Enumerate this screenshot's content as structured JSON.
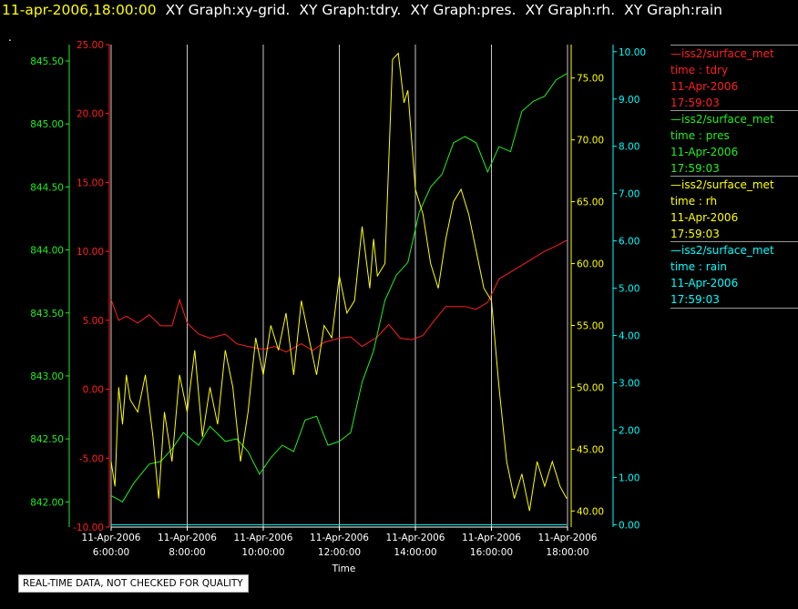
{
  "header": {
    "timestamp": "11-apr-2006,18:00:00",
    "graphs": [
      "XY Graph:xy-grid.",
      "XY Graph:tdry.",
      "XY Graph:pres.",
      "XY Graph:rh.",
      "XY Graph:rain"
    ]
  },
  "marker_text": ".",
  "disclaimer": "REAL-TIME DATA, NOT CHECKED FOR QUALITY",
  "legend": [
    {
      "name": "—iss2/surface_met",
      "field": "time : tdry",
      "date": "11-Apr-2006",
      "time": "17:59:03",
      "color": "#ff2020"
    },
    {
      "name": "—iss2/surface_met",
      "field": "time : pres",
      "date": "11-Apr-2006",
      "time": "17:59:03",
      "color": "#22ee22"
    },
    {
      "name": "—iss2/surface_met",
      "field": "time : rh",
      "date": "11-Apr-2006",
      "time": "17:59:03",
      "color": "#ffff00"
    },
    {
      "name": "—iss2/surface_met",
      "field": "time : rain",
      "date": "11-Apr-2006",
      "time": "17:59:03",
      "color": "#00ffff"
    }
  ],
  "chart_data": {
    "type": "line",
    "xlabel": "Time",
    "x_ticks": [
      {
        "date": "11-Apr-2006",
        "time": "6:00:00"
      },
      {
        "date": "11-Apr-2006",
        "time": "8:00:00"
      },
      {
        "date": "11-Apr-2006",
        "time": "10:00:00"
      },
      {
        "date": "11-Apr-2006",
        "time": "12:00:00"
      },
      {
        "date": "11-Apr-2006",
        "time": "14:00:00"
      },
      {
        "date": "11-Apr-2006",
        "time": "16:00:00"
      },
      {
        "date": "11-Apr-2006",
        "time": "18:00:00"
      }
    ],
    "x_range_hours": [
      6,
      18
    ],
    "grid": "vertical",
    "axes": [
      {
        "id": "pres",
        "color": "#22ee22",
        "range": [
          841.8,
          845.63
        ],
        "ticks": [
          "842.00",
          "842.50",
          "843.00",
          "843.50",
          "844.00",
          "844.50",
          "845.00",
          "845.50"
        ],
        "side": "left"
      },
      {
        "id": "tdry",
        "color": "#ff2020",
        "range": [
          -10,
          25
        ],
        "ticks": [
          "-10.00",
          "-5.00",
          "0.00",
          "5.00",
          "10.00",
          "15.00",
          "20.00",
          "25.00"
        ],
        "side": "left"
      },
      {
        "id": "rh",
        "color": "#ffff00",
        "range": [
          38.7,
          77.7
        ],
        "ticks": [
          "40.00",
          "45.00",
          "50.00",
          "55.00",
          "60.00",
          "65.00",
          "70.00",
          "75.00"
        ],
        "side": "right"
      },
      {
        "id": "rain",
        "color": "#00ffff",
        "range": [
          -0.05,
          10.15
        ],
        "ticks": [
          "0.00",
          "1.00",
          "2.00",
          "3.00",
          "4.00",
          "5.00",
          "6.00",
          "7.00",
          "8.00",
          "9.00",
          "10.00"
        ],
        "side": "right"
      }
    ],
    "series": [
      {
        "axis": "tdry",
        "color": "#ff2020",
        "x": [
          6.0,
          6.2,
          6.4,
          6.7,
          7.0,
          7.3,
          7.6,
          7.8,
          8.0,
          8.3,
          8.6,
          9.0,
          9.3,
          9.6,
          10.0,
          10.3,
          10.6,
          11.0,
          11.3,
          11.6,
          12.0,
          12.3,
          12.6,
          13.0,
          13.3,
          13.6,
          13.9,
          14.2,
          14.5,
          14.8,
          15.0,
          15.3,
          15.6,
          15.9,
          16.2,
          16.5,
          16.8,
          17.1,
          17.4,
          17.7,
          17.98
        ],
        "y": [
          6.5,
          5.0,
          5.3,
          4.8,
          5.4,
          4.6,
          4.6,
          6.5,
          4.8,
          4.0,
          3.7,
          4.0,
          3.3,
          3.1,
          2.9,
          3.1,
          2.7,
          3.3,
          2.8,
          3.4,
          3.7,
          3.8,
          3.1,
          3.8,
          4.7,
          3.7,
          3.6,
          3.9,
          5.0,
          6.0,
          6.0,
          6.0,
          5.8,
          6.3,
          8.0,
          8.5,
          9.0,
          9.5,
          10.0,
          10.4,
          10.8
        ]
      },
      {
        "axis": "pres",
        "color": "#22ee22",
        "x": [
          6.0,
          6.3,
          6.6,
          7.0,
          7.3,
          7.6,
          7.9,
          8.3,
          8.6,
          9.0,
          9.3,
          9.6,
          9.9,
          10.2,
          10.5,
          10.8,
          11.1,
          11.4,
          11.7,
          12.0,
          12.3,
          12.6,
          12.9,
          13.2,
          13.5,
          13.8,
          14.1,
          14.4,
          14.7,
          15.0,
          15.3,
          15.6,
          15.9,
          16.2,
          16.5,
          16.8,
          17.1,
          17.4,
          17.7,
          17.98
        ],
        "y": [
          842.05,
          842.0,
          842.15,
          842.3,
          842.32,
          842.42,
          842.55,
          842.45,
          842.6,
          842.48,
          842.5,
          842.4,
          842.22,
          842.35,
          842.45,
          842.4,
          842.65,
          842.68,
          842.45,
          842.48,
          842.55,
          842.95,
          843.2,
          843.6,
          843.8,
          843.9,
          844.3,
          844.5,
          844.6,
          844.85,
          844.9,
          844.85,
          844.62,
          844.82,
          844.78,
          845.1,
          845.18,
          845.22,
          845.35,
          845.4
        ]
      },
      {
        "axis": "rh",
        "color": "#ffff00",
        "x": [
          6.0,
          6.1,
          6.2,
          6.3,
          6.4,
          6.5,
          6.7,
          6.9,
          7.1,
          7.25,
          7.4,
          7.6,
          7.8,
          8.0,
          8.2,
          8.4,
          8.6,
          8.8,
          9.0,
          9.2,
          9.4,
          9.6,
          9.8,
          10.0,
          10.2,
          10.4,
          10.6,
          10.8,
          11.0,
          11.2,
          11.4,
          11.6,
          11.8,
          12.0,
          12.2,
          12.4,
          12.6,
          12.8,
          12.9,
          13.0,
          13.2,
          13.4,
          13.55,
          13.7,
          13.8,
          14.0,
          14.2,
          14.4,
          14.6,
          14.8,
          15.0,
          15.2,
          15.4,
          15.6,
          15.8,
          16.0,
          16.2,
          16.4,
          16.6,
          16.8,
          17.0,
          17.2,
          17.4,
          17.6,
          17.8,
          17.98
        ],
        "y": [
          44.0,
          42.0,
          50.0,
          47.0,
          51.0,
          49.0,
          48.0,
          51.0,
          46.0,
          41.0,
          48.0,
          44.0,
          51.0,
          48.0,
          53.0,
          46.0,
          50.0,
          47.0,
          53.0,
          50.0,
          44.0,
          48.0,
          54.0,
          51.0,
          55.0,
          53.0,
          56.0,
          51.0,
          57.0,
          54.0,
          51.0,
          55.0,
          54.0,
          59.0,
          56.0,
          57.0,
          63.0,
          58.0,
          62.0,
          59.0,
          60.0,
          76.5,
          77.0,
          73.0,
          74.0,
          66.0,
          64.0,
          60.0,
          58.0,
          62.0,
          65.0,
          66.0,
          64.0,
          61.0,
          58.0,
          57.0,
          50.0,
          44.0,
          41.0,
          43.0,
          40.0,
          44.0,
          42.0,
          44.0,
          42.0,
          41.0
        ]
      },
      {
        "axis": "rain",
        "color": "#00ffff",
        "x": [
          6.0,
          17.98
        ],
        "y": [
          0.0,
          0.0
        ]
      }
    ]
  }
}
